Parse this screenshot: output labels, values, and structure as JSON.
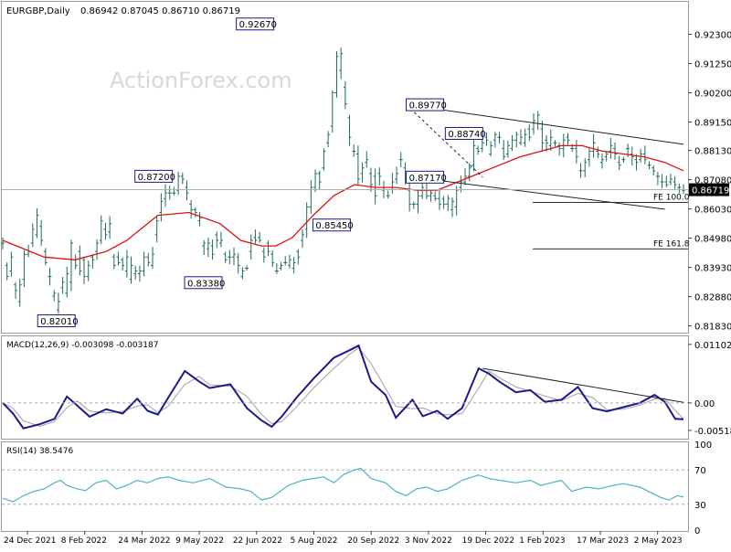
{
  "header": {
    "symbol": "EURGBP,Daily",
    "ohlc": "0.86942 0.87045 0.86710 0.86719"
  },
  "watermark": "ActionForex.com",
  "colors": {
    "background": "#ffffff",
    "price_bars": "#1e6b5a",
    "ma": "#dd1111",
    "macd": "#1a1a8c",
    "signal": "#a0a0a0",
    "rsi": "#4db3c4",
    "trendline": "#222222",
    "label_border": "#1a1a8c",
    "grid": "#c8c8c8"
  },
  "chart_data": [
    {
      "id": "price",
      "type": "ohlc",
      "y_axis_ticks": [
        "0.92300",
        "0.91250",
        "0.90200",
        "0.89150",
        "0.88130",
        "0.87080",
        "0.86030",
        "0.84980",
        "0.83930",
        "0.82880",
        "0.81830"
      ],
      "ylim": [
        0.8165,
        0.934
      ],
      "current_price": "0.86719",
      "x_axis_labels": [
        "24 Dec 2021",
        "8 Feb 2022",
        "24 Mar 2022",
        "9 May 2022",
        "22 Jun 2022",
        "5 Aug 2022",
        "20 Sep 2022",
        "3 Nov 2022",
        "19 Dec 2022",
        "1 Feb 2023",
        "17 Mar 2023",
        "2 May 2023"
      ],
      "price_keypoints": [
        [
          0.848,
          0.848
        ],
        [
          0.84,
          0.836
        ],
        [
          0.838,
          0.843
        ],
        [
          0.833,
          0.831
        ],
        [
          0.827,
          0.833
        ],
        [
          0.835,
          0.844
        ],
        [
          0.844,
          0.845
        ],
        [
          0.848,
          0.853
        ],
        [
          0.851,
          0.858
        ],
        [
          0.854,
          0.849
        ],
        [
          0.845,
          0.841
        ],
        [
          0.836,
          0.836
        ],
        [
          0.829,
          0.83
        ],
        [
          0.824,
          0.827
        ],
        [
          0.832,
          0.834
        ],
        [
          0.83,
          0.837
        ],
        [
          0.834,
          0.848
        ],
        [
          0.842,
          0.84
        ],
        [
          0.845,
          0.838
        ],
        [
          0.842,
          0.836
        ],
        [
          0.836,
          0.84
        ],
        [
          0.843,
          0.842
        ],
        [
          0.845,
          0.848
        ],
        [
          0.849,
          0.856
        ],
        [
          0.853,
          0.851
        ],
        [
          0.852,
          0.855
        ],
        [
          0.843,
          0.84
        ],
        [
          0.843,
          0.841
        ],
        [
          0.842,
          0.84
        ],
        [
          0.838,
          0.843
        ],
        [
          0.835,
          0.84
        ],
        [
          0.837,
          0.838
        ],
        [
          0.837,
          0.838
        ],
        [
          0.838,
          0.843
        ],
        [
          0.843,
          0.841
        ],
        [
          0.84,
          0.844
        ],
        [
          0.851,
          0.856
        ],
        [
          0.859,
          0.863
        ],
        [
          0.864,
          0.866
        ],
        [
          0.866,
          0.866
        ],
        [
          0.866,
          0.866
        ],
        [
          0.867,
          0.872
        ],
        [
          0.872,
          0.871
        ],
        [
          0.868,
          0.866
        ],
        [
          0.862,
          0.86
        ],
        [
          0.86,
          0.859
        ],
        [
          0.856,
          0.857
        ],
        [
          0.847,
          0.848
        ],
        [
          0.846,
          0.848
        ],
        [
          0.847,
          0.844
        ],
        [
          0.851,
          0.849
        ],
        [
          0.848,
          0.849
        ],
        [
          0.844,
          0.842
        ],
        [
          0.843,
          0.843
        ],
        [
          0.843,
          0.844
        ],
        [
          0.843,
          0.84
        ],
        [
          0.836,
          0.838
        ],
        [
          0.839,
          0.839
        ],
        [
          0.845,
          0.849
        ],
        [
          0.85,
          0.849
        ],
        [
          0.85,
          0.849
        ],
        [
          0.845,
          0.843
        ],
        [
          0.848,
          0.845
        ],
        [
          0.844,
          0.841
        ],
        [
          0.838,
          0.838
        ],
        [
          0.839,
          0.84
        ],
        [
          0.841,
          0.841
        ],
        [
          0.84,
          0.842
        ],
        [
          0.839,
          0.841
        ],
        [
          0.845,
          0.843
        ],
        [
          0.849,
          0.851
        ],
        [
          0.853,
          0.861
        ],
        [
          0.861,
          0.868
        ],
        [
          0.868,
          0.873
        ],
        [
          0.873,
          0.87
        ],
        [
          0.875,
          0.881
        ],
        [
          0.884,
          0.887
        ],
        [
          0.89,
          0.902
        ],
        [
          0.902,
          0.915
        ],
        [
          0.91,
          0.916
        ],
        [
          0.904,
          0.898
        ],
        [
          0.893,
          0.886
        ],
        [
          0.881,
          0.881
        ],
        [
          0.88,
          0.871
        ],
        [
          0.873,
          0.875
        ],
        [
          0.877,
          0.878
        ],
        [
          0.873,
          0.869
        ],
        [
          0.872,
          0.865
        ],
        [
          0.873,
          0.872
        ],
        [
          0.867,
          0.868
        ],
        [
          0.865,
          0.865
        ],
        [
          0.868,
          0.87
        ],
        [
          0.871,
          0.873
        ],
        [
          0.878,
          0.878
        ],
        [
          0.875,
          0.871
        ],
        [
          0.867,
          0.862
        ],
        [
          0.862,
          0.862
        ],
        [
          0.862,
          0.865
        ],
        [
          0.865,
          0.868
        ],
        [
          0.867,
          0.865
        ],
        [
          0.865,
          0.866
        ],
        [
          0.865,
          0.864
        ],
        [
          0.864,
          0.862
        ],
        [
          0.864,
          0.862
        ],
        [
          0.862,
          0.864
        ],
        [
          0.86,
          0.863
        ],
        [
          0.861,
          0.867
        ],
        [
          0.868,
          0.87
        ],
        [
          0.87,
          0.872
        ],
        [
          0.872,
          0.875
        ],
        [
          0.876,
          0.883
        ],
        [
          0.882,
          0.881
        ],
        [
          0.882,
          0.884
        ],
        [
          0.886,
          0.885
        ],
        [
          0.88,
          0.883
        ],
        [
          0.885,
          0.887
        ],
        [
          0.886,
          0.886
        ],
        [
          0.882,
          0.879
        ],
        [
          0.88,
          0.883
        ],
        [
          0.882,
          0.885
        ],
        [
          0.885,
          0.887
        ],
        [
          0.884,
          0.886
        ],
        [
          0.884,
          0.887
        ],
        [
          0.889,
          0.886
        ],
        [
          0.889,
          0.892
        ],
        [
          0.891,
          0.894
        ],
        [
          0.889,
          0.884
        ],
        [
          0.885,
          0.884
        ],
        [
          0.883,
          0.886
        ],
        [
          0.884,
          0.884
        ],
        [
          0.883,
          0.882
        ],
        [
          0.882,
          0.885
        ],
        [
          0.886,
          0.885
        ],
        [
          0.882,
          0.882
        ],
        [
          0.882,
          0.879
        ],
        [
          0.874,
          0.874
        ],
        [
          0.874,
          0.877
        ],
        [
          0.878,
          0.881
        ],
        [
          0.881,
          0.884
        ],
        [
          0.881,
          0.88
        ],
        [
          0.877,
          0.878
        ],
        [
          0.879,
          0.88
        ],
        [
          0.881,
          0.883
        ],
        [
          0.882,
          0.88
        ],
        [
          0.877,
          0.876
        ],
        [
          0.878,
          0.878
        ],
        [
          0.882,
          0.882
        ],
        [
          0.88,
          0.879
        ],
        [
          0.878,
          0.877
        ],
        [
          0.878,
          0.88
        ],
        [
          0.88,
          0.878
        ],
        [
          0.876,
          0.876
        ],
        [
          0.875,
          0.874
        ],
        [
          0.872,
          0.872
        ],
        [
          0.87,
          0.87
        ],
        [
          0.87,
          0.869
        ],
        [
          0.87,
          0.871
        ],
        [
          0.87,
          0.869
        ],
        [
          0.868,
          0.868
        ],
        [
          0.867,
          0.867
        ]
      ],
      "ma_keypoints": [
        [
          0,
          0.849
        ],
        [
          10,
          0.846
        ],
        [
          20,
          0.843
        ],
        [
          35,
          0.842
        ],
        [
          50,
          0.845
        ],
        [
          60,
          0.849
        ],
        [
          65,
          0.852
        ],
        [
          75,
          0.858
        ],
        [
          90,
          0.859
        ],
        [
          105,
          0.855
        ],
        [
          115,
          0.849
        ],
        [
          125,
          0.847
        ],
        [
          132,
          0.847
        ],
        [
          140,
          0.85
        ],
        [
          150,
          0.858
        ],
        [
          160,
          0.865
        ],
        [
          170,
          0.869
        ],
        [
          180,
          0.868
        ],
        [
          190,
          0.868
        ],
        [
          200,
          0.867
        ],
        [
          210,
          0.867
        ],
        [
          220,
          0.87
        ],
        [
          230,
          0.873
        ],
        [
          240,
          0.876
        ],
        [
          250,
          0.879
        ],
        [
          260,
          0.881
        ],
        [
          270,
          0.883
        ],
        [
          280,
          0.883
        ],
        [
          290,
          0.881
        ],
        [
          300,
          0.88
        ],
        [
          310,
          0.879
        ],
        [
          320,
          0.877
        ],
        [
          329,
          0.874
        ]
      ],
      "labels": [
        {
          "text": "0.92670",
          "value": 0.9267,
          "bar": 131
        },
        {
          "text": "0.89770",
          "value": 0.8977,
          "bar": 195
        },
        {
          "text": "0.88740",
          "value": 0.8874,
          "bar": 232
        },
        {
          "text": "0.87200",
          "value": 0.872,
          "bar": 82
        },
        {
          "text": "0.87170",
          "value": 0.8717,
          "bar": 195
        },
        {
          "text": "0.85450",
          "value": 0.8545,
          "bar": 168
        },
        {
          "text": "0.83380",
          "value": 0.8338,
          "bar": 106
        },
        {
          "text": "0.82010",
          "value": 0.8201,
          "bar": 35
        }
      ],
      "fib_levels": [
        {
          "text": "FE 100.0",
          "value": 0.8626
        },
        {
          "text": "FE 161.8",
          "value": 0.8459
        }
      ],
      "channel_upper": [
        [
          195,
          0.8977
        ],
        [
          329,
          0.8835
        ]
      ],
      "channel_lower": [
        [
          198,
          0.8717
        ],
        [
          320,
          0.8602
        ]
      ]
    },
    {
      "id": "macd",
      "type": "line",
      "title": "MACD(12,26,9) -0.003098 -0.003187",
      "y_axis_ticks": [
        "0.011023",
        "0.00",
        "-0.005182"
      ],
      "ylim": [
        -0.0064,
        0.0122
      ],
      "macd_keypoints": [
        [
          0,
          0.0
        ],
        [
          5,
          -0.002
        ],
        [
          10,
          -0.0048
        ],
        [
          18,
          -0.004
        ],
        [
          25,
          -0.003
        ],
        [
          31,
          0.0012
        ],
        [
          36,
          -0.0005
        ],
        [
          42,
          -0.0026
        ],
        [
          50,
          -0.0012
        ],
        [
          58,
          -0.002
        ],
        [
          65,
          0.0008
        ],
        [
          70,
          -0.0015
        ],
        [
          75,
          -0.0022
        ],
        [
          80,
          0.001
        ],
        [
          88,
          0.006
        ],
        [
          95,
          0.004
        ],
        [
          100,
          0.0028
        ],
        [
          110,
          0.0035
        ],
        [
          118,
          -0.001
        ],
        [
          125,
          -0.0033
        ],
        [
          130,
          -0.0045
        ],
        [
          135,
          -0.0025
        ],
        [
          142,
          0.001
        ],
        [
          150,
          0.0045
        ],
        [
          160,
          0.0085
        ],
        [
          168,
          0.01
        ],
        [
          172,
          0.0108
        ],
        [
          178,
          0.004
        ],
        [
          185,
          0.0015
        ],
        [
          190,
          -0.0028
        ],
        [
          198,
          0.0006
        ],
        [
          203,
          -0.0025
        ],
        [
          210,
          -0.0015
        ],
        [
          215,
          -0.003
        ],
        [
          222,
          -0.001
        ],
        [
          230,
          0.0065
        ],
        [
          235,
          0.0055
        ],
        [
          240,
          0.004
        ],
        [
          248,
          0.002
        ],
        [
          255,
          0.0024
        ],
        [
          262,
          0.0002
        ],
        [
          270,
          0.0006
        ],
        [
          278,
          0.003
        ],
        [
          285,
          -0.001
        ],
        [
          292,
          -0.0016
        ],
        [
          300,
          -0.0008
        ],
        [
          308,
          0.0
        ],
        [
          315,
          0.0015
        ],
        [
          320,
          0.0002
        ],
        [
          325,
          -0.003
        ],
        [
          329,
          -0.0031
        ]
      ],
      "trendline": [
        [
          232,
          0.0065
        ],
        [
          329,
          0.0001
        ]
      ]
    },
    {
      "id": "rsi",
      "type": "line",
      "title": "RSI(14) 38.5476",
      "y_axis_ticks": [
        "100",
        "70",
        "30",
        "0"
      ],
      "ylim": [
        0,
        100
      ],
      "rsi_keypoints": [
        [
          0,
          37
        ],
        [
          5,
          33
        ],
        [
          10,
          40
        ],
        [
          15,
          45
        ],
        [
          20,
          48
        ],
        [
          25,
          55
        ],
        [
          28,
          58
        ],
        [
          31,
          52
        ],
        [
          36,
          48
        ],
        [
          40,
          46
        ],
        [
          45,
          55
        ],
        [
          50,
          58
        ],
        [
          55,
          48
        ],
        [
          60,
          52
        ],
        [
          65,
          58
        ],
        [
          70,
          55
        ],
        [
          75,
          60
        ],
        [
          80,
          62
        ],
        [
          85,
          58
        ],
        [
          92,
          55
        ],
        [
          100,
          60
        ],
        [
          108,
          50
        ],
        [
          115,
          48
        ],
        [
          120,
          45
        ],
        [
          125,
          35
        ],
        [
          130,
          38
        ],
        [
          138,
          52
        ],
        [
          145,
          58
        ],
        [
          150,
          60
        ],
        [
          155,
          62
        ],
        [
          160,
          55
        ],
        [
          165,
          65
        ],
        [
          170,
          70
        ],
        [
          173,
          72
        ],
        [
          178,
          60
        ],
        [
          185,
          55
        ],
        [
          190,
          45
        ],
        [
          195,
          40
        ],
        [
          200,
          48
        ],
        [
          205,
          50
        ],
        [
          210,
          45
        ],
        [
          215,
          48
        ],
        [
          222,
          58
        ],
        [
          230,
          64
        ],
        [
          235,
          60
        ],
        [
          240,
          58
        ],
        [
          248,
          55
        ],
        [
          255,
          58
        ],
        [
          260,
          52
        ],
        [
          265,
          55
        ],
        [
          270,
          58
        ],
        [
          275,
          45
        ],
        [
          282,
          50
        ],
        [
          288,
          48
        ],
        [
          295,
          52
        ],
        [
          300,
          54
        ],
        [
          308,
          50
        ],
        [
          312,
          45
        ],
        [
          318,
          38
        ],
        [
          322,
          35
        ],
        [
          326,
          40
        ],
        [
          329,
          38.5
        ]
      ]
    }
  ]
}
